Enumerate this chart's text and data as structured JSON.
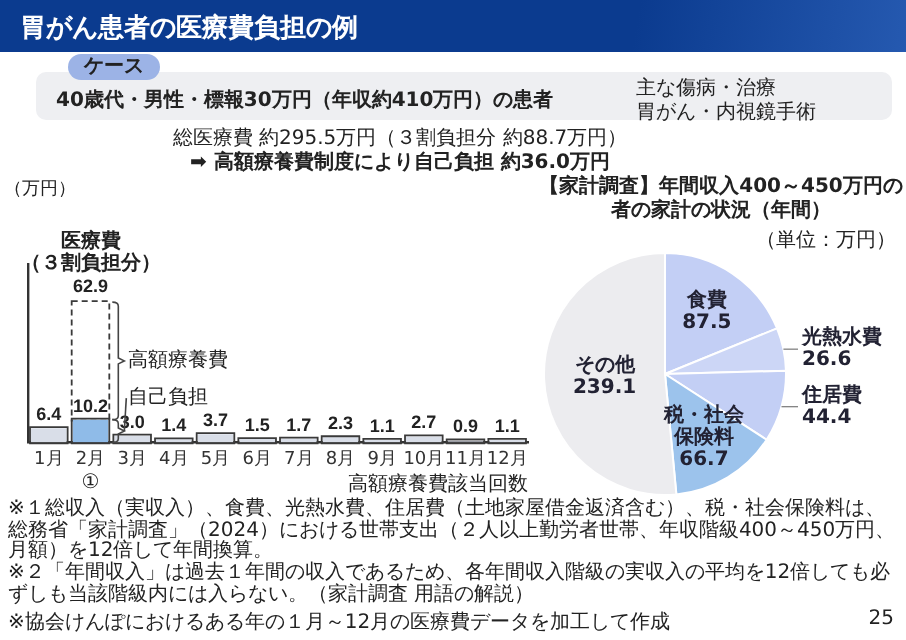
{
  "chart_data": [
    {
      "type": "bar",
      "title": "胃がん患者の医療費負担の例",
      "ylabel": "（万円）",
      "xlabel": "高額療養費該当回数",
      "categories": [
        "1月",
        "2月",
        "3月",
        "4月",
        "5月",
        "6月",
        "7月",
        "8月",
        "9月",
        "10月",
        "11月",
        "12月"
      ],
      "stacked": true,
      "grid": false,
      "legend": false,
      "tick_labels": "x",
      "series": [
        {
          "name": "自己負担",
          "colors": [
            "#d9dee8",
            "#8fbbe8",
            "#d9dee8",
            "#d9dee8",
            "#d9dee8",
            "#d9dee8",
            "#d9dee8",
            "#d9dee8",
            "#d9dee8",
            "#d9dee8",
            "#9a9ca4",
            "#d9dee8"
          ],
          "values": [
            6.4,
            10.2,
            3.0,
            1.4,
            3.7,
            1.5,
            1.7,
            2.3,
            1.1,
            2.7,
            0.9,
            1.1
          ],
          "value_labels": [
            "6.4",
            "10.2",
            "3.0",
            "1.4",
            "3.7",
            "1.5",
            "1.7",
            "2.3",
            "1.1",
            "2.7",
            "0.9",
            "1.1"
          ]
        },
        {
          "name": "高額療養費",
          "color": "#ffffff",
          "line_style": "dashed",
          "values": [
            null,
            52.7,
            null,
            null,
            null,
            null,
            null,
            null,
            null,
            null,
            null,
            null
          ]
        }
      ],
      "totals": [
        null,
        "62.9",
        null,
        null,
        null,
        null,
        null,
        null,
        null,
        null,
        null,
        null
      ],
      "annotations": [
        "ケース",
        "40歳代・男性・標報30万円（年収約410万円）の患者",
        "主な傷病・治療",
        "胃がん・内視鏡手術",
        "総医療費 約295.5万円（３割負担分 約88.7万円）",
        "➡ 高額療養費制度により自己負担 約36.0万円",
        "医療費（３割負担分）",
        "①",
        "※協会けんぽにおけるある年の１月～12月の医療費データを加工して作成"
      ]
    },
    {
      "type": "pie",
      "title": "【家計調査】年間収入400～450万円の者の家計の状況（年間）",
      "subtitle": "（単位：万円）",
      "categories": [
        "食費",
        "光熱水費",
        "住居費",
        "税・社会保険料",
        "その他"
      ],
      "values": [
        87.5,
        26.6,
        44.4,
        66.7,
        239.1
      ],
      "colors": [
        "#c3cff5",
        "#ccd6f6",
        "#c3cff5",
        "#9cc3ec",
        "#ececef"
      ],
      "data_labels": true,
      "legend": false,
      "annotations": [
        "※１総収入（実収入）、食費、光熱水費、住居費（土地家屋借金返済含む）、税・社会保険料は、総務省「家計調査」（2024）における世帯支出（２人以上勤労者世帯、年収階級400～450万円、月額）を12倍して年間換算。",
        "※２「年間収入」は過去１年間の収入であるため、各年間収入階級の実収入の平均を12倍しても必ずしも当該階級内には入らない。（家計調査 用語の解説）",
        "25"
      ]
    }
  ]
}
